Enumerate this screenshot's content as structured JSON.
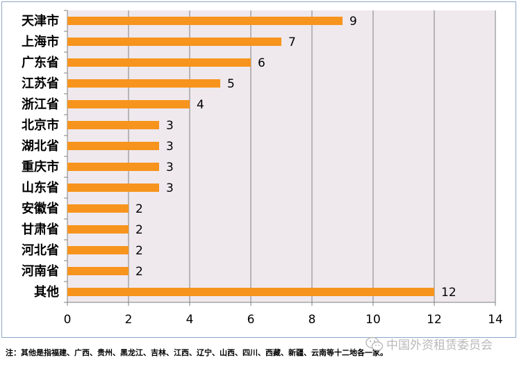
{
  "chart_data": {
    "type": "bar",
    "orientation": "horizontal",
    "categories": [
      "天津市",
      "上海市",
      "广东省",
      "江苏省",
      "浙江省",
      "北京市",
      "湖北省",
      "重庆市",
      "山东省",
      "安徽省",
      "甘肃省",
      "河北省",
      "河南省",
      "其他"
    ],
    "values": [
      9,
      7,
      6,
      5,
      4,
      3,
      3,
      3,
      3,
      2,
      2,
      2,
      2,
      12
    ],
    "xlim": [
      0,
      14
    ],
    "xticks": [
      0,
      2,
      4,
      6,
      8,
      10,
      12,
      14
    ],
    "grid": true,
    "title": "",
    "xlabel": "",
    "ylabel": "",
    "colors": {
      "bar": "#f7941d",
      "plot_bg": "#efe9ee",
      "grid": "#7f7f7f",
      "frame": "#8aa6c8"
    }
  },
  "footnote": "注：其他是指福建、广西、贵州、黑龙江、吉林、江西、辽宁、山西、四川、西藏、新疆、云南等十二地各一家。",
  "watermark": {
    "text": "中国外资租赁委员会",
    "icon": "wechat-icon"
  }
}
